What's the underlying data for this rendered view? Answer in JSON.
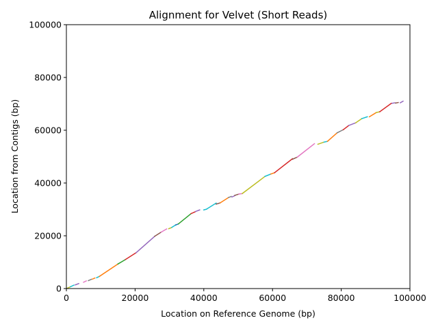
{
  "chart_data": {
    "type": "line",
    "title": "Alignment for Velvet (Short Reads)",
    "xlabel": "Location on Reference Genome (bp)",
    "ylabel": "Location from Contigs (bp)",
    "xlim": [
      0,
      100000
    ],
    "ylim": [
      0,
      100000
    ],
    "x_ticks": [
      "0",
      "20000",
      "40000",
      "60000",
      "80000",
      "100000"
    ],
    "y_ticks": [
      "0",
      "20000",
      "40000",
      "60000",
      "80000",
      "100000"
    ],
    "grid": false,
    "legend": "none",
    "palette": [
      "#1f77b4",
      "#ff7f0e",
      "#2ca02c",
      "#d62728",
      "#9467bd",
      "#8c564b",
      "#e377c2",
      "#7f7f7f",
      "#bcbd22",
      "#17becf"
    ],
    "series": [
      {
        "x": [
          0,
          1200
        ],
        "y": [
          0,
          700
        ],
        "color": "#bcbd22"
      },
      {
        "x": [
          1200,
          2200
        ],
        "y": [
          700,
          1300
        ],
        "color": "#17becf"
      },
      {
        "x": [
          2600,
          3600
        ],
        "y": [
          1400,
          1900
        ],
        "color": "#9467bd"
      },
      {
        "x": [
          5000,
          5800
        ],
        "y": [
          2400,
          2900
        ],
        "color": "#e377c2"
      },
      {
        "x": [
          6400,
          7300
        ],
        "y": [
          3000,
          3500
        ],
        "color": "#7f7f7f"
      },
      {
        "x": [
          7600,
          8300
        ],
        "y": [
          3600,
          4000
        ],
        "color": "#ff7f0e"
      },
      {
        "x": [
          8800,
          9600
        ],
        "y": [
          4100,
          4600
        ],
        "color": "#17becf"
      },
      {
        "x": [
          9600,
          15000
        ],
        "y": [
          4600,
          9300
        ],
        "color": "#ff7f0e"
      },
      {
        "x": [
          15000,
          17200
        ],
        "y": [
          9300,
          11000
        ],
        "color": "#2ca02c"
      },
      {
        "x": [
          17200,
          20300
        ],
        "y": [
          11000,
          13600
        ],
        "color": "#d62728"
      },
      {
        "x": [
          20300,
          25700
        ],
        "y": [
          13600,
          19800
        ],
        "color": "#9467bd"
      },
      {
        "x": [
          25700,
          27600
        ],
        "y": [
          19800,
          21400
        ],
        "color": "#8c564b"
      },
      {
        "x": [
          27600,
          29200
        ],
        "y": [
          21400,
          22600
        ],
        "color": "#e377c2"
      },
      {
        "x": [
          29800,
          30600
        ],
        "y": [
          22700,
          23100
        ],
        "color": "#bcbd22"
      },
      {
        "x": [
          30700,
          31800
        ],
        "y": [
          23200,
          24100
        ],
        "color": "#17becf"
      },
      {
        "x": [
          31800,
          32600
        ],
        "y": [
          24100,
          24500
        ],
        "color": "#1f77b4"
      },
      {
        "x": [
          32600,
          36300
        ],
        "y": [
          24500,
          28400
        ],
        "color": "#2ca02c"
      },
      {
        "x": [
          36300,
          37500
        ],
        "y": [
          28400,
          29100
        ],
        "color": "#d62728"
      },
      {
        "x": [
          37600,
          38800
        ],
        "y": [
          29200,
          29800
        ],
        "color": "#9467bd"
      },
      {
        "x": [
          40000,
          40800
        ],
        "y": [
          29800,
          30100
        ],
        "color": "#17becf"
      },
      {
        "x": [
          40800,
          43600
        ],
        "y": [
          30100,
          32400
        ],
        "color": "#17becf"
      },
      {
        "x": [
          43600,
          44800
        ],
        "y": [
          32000,
          32500
        ],
        "color": "#8c564b"
      },
      {
        "x": [
          44800,
          47200
        ],
        "y": [
          32500,
          34500
        ],
        "color": "#ff7f0e"
      },
      {
        "x": [
          47200,
          48000
        ],
        "y": [
          34500,
          34900
        ],
        "color": "#7f7f7f"
      },
      {
        "x": [
          48200,
          49000
        ],
        "y": [
          34700,
          35200
        ],
        "color": "#9467bd"
      },
      {
        "x": [
          49000,
          50200
        ],
        "y": [
          35300,
          35800
        ],
        "color": "#8c564b"
      },
      {
        "x": [
          50200,
          51200
        ],
        "y": [
          35800,
          36000
        ],
        "color": "#e377c2"
      },
      {
        "x": [
          51200,
          57800
        ],
        "y": [
          36000,
          42500
        ],
        "color": "#bcbd22"
      },
      {
        "x": [
          57800,
          59500
        ],
        "y": [
          42500,
          43400
        ],
        "color": "#17becf"
      },
      {
        "x": [
          59500,
          60600
        ],
        "y": [
          43400,
          43900
        ],
        "color": "#ff7f0e"
      },
      {
        "x": [
          60600,
          65800
        ],
        "y": [
          43900,
          49200
        ],
        "color": "#d62728"
      },
      {
        "x": [
          65800,
          67200
        ],
        "y": [
          49000,
          49800
        ],
        "color": "#8c564b"
      },
      {
        "x": [
          67200,
          72200
        ],
        "y": [
          49800,
          54900
        ],
        "color": "#e377c2"
      },
      {
        "x": [
          73200,
          75000
        ],
        "y": [
          54700,
          55500
        ],
        "color": "#bcbd22"
      },
      {
        "x": [
          75000,
          76000
        ],
        "y": [
          55500,
          55800
        ],
        "color": "#17becf"
      },
      {
        "x": [
          76000,
          78800
        ],
        "y": [
          55800,
          59000
        ],
        "color": "#ff7f0e"
      },
      {
        "x": [
          78800,
          80600
        ],
        "y": [
          59000,
          60200
        ],
        "color": "#7f7f7f"
      },
      {
        "x": [
          80600,
          82200
        ],
        "y": [
          60200,
          61800
        ],
        "color": "#d62728"
      },
      {
        "x": [
          82200,
          84200
        ],
        "y": [
          61800,
          62800
        ],
        "color": "#9467bd"
      },
      {
        "x": [
          84200,
          86000
        ],
        "y": [
          62800,
          64400
        ],
        "color": "#bcbd22"
      },
      {
        "x": [
          86000,
          87600
        ],
        "y": [
          64400,
          65100
        ],
        "color": "#17becf"
      },
      {
        "x": [
          88200,
          90200
        ],
        "y": [
          65100,
          66700
        ],
        "color": "#ff7f0e"
      },
      {
        "x": [
          90200,
          91200
        ],
        "y": [
          66700,
          67000
        ],
        "color": "#bcbd22"
      },
      {
        "x": [
          91200,
          94600
        ],
        "y": [
          67000,
          70200
        ],
        "color": "#d62728"
      },
      {
        "x": [
          94800,
          95600
        ],
        "y": [
          70200,
          70400
        ],
        "color": "#9467bd"
      },
      {
        "x": [
          95800,
          96600
        ],
        "y": [
          70300,
          70500
        ],
        "color": "#8c564b"
      },
      {
        "x": [
          97200,
          98000
        ],
        "y": [
          70400,
          71000
        ],
        "color": "#9467bd"
      }
    ]
  }
}
